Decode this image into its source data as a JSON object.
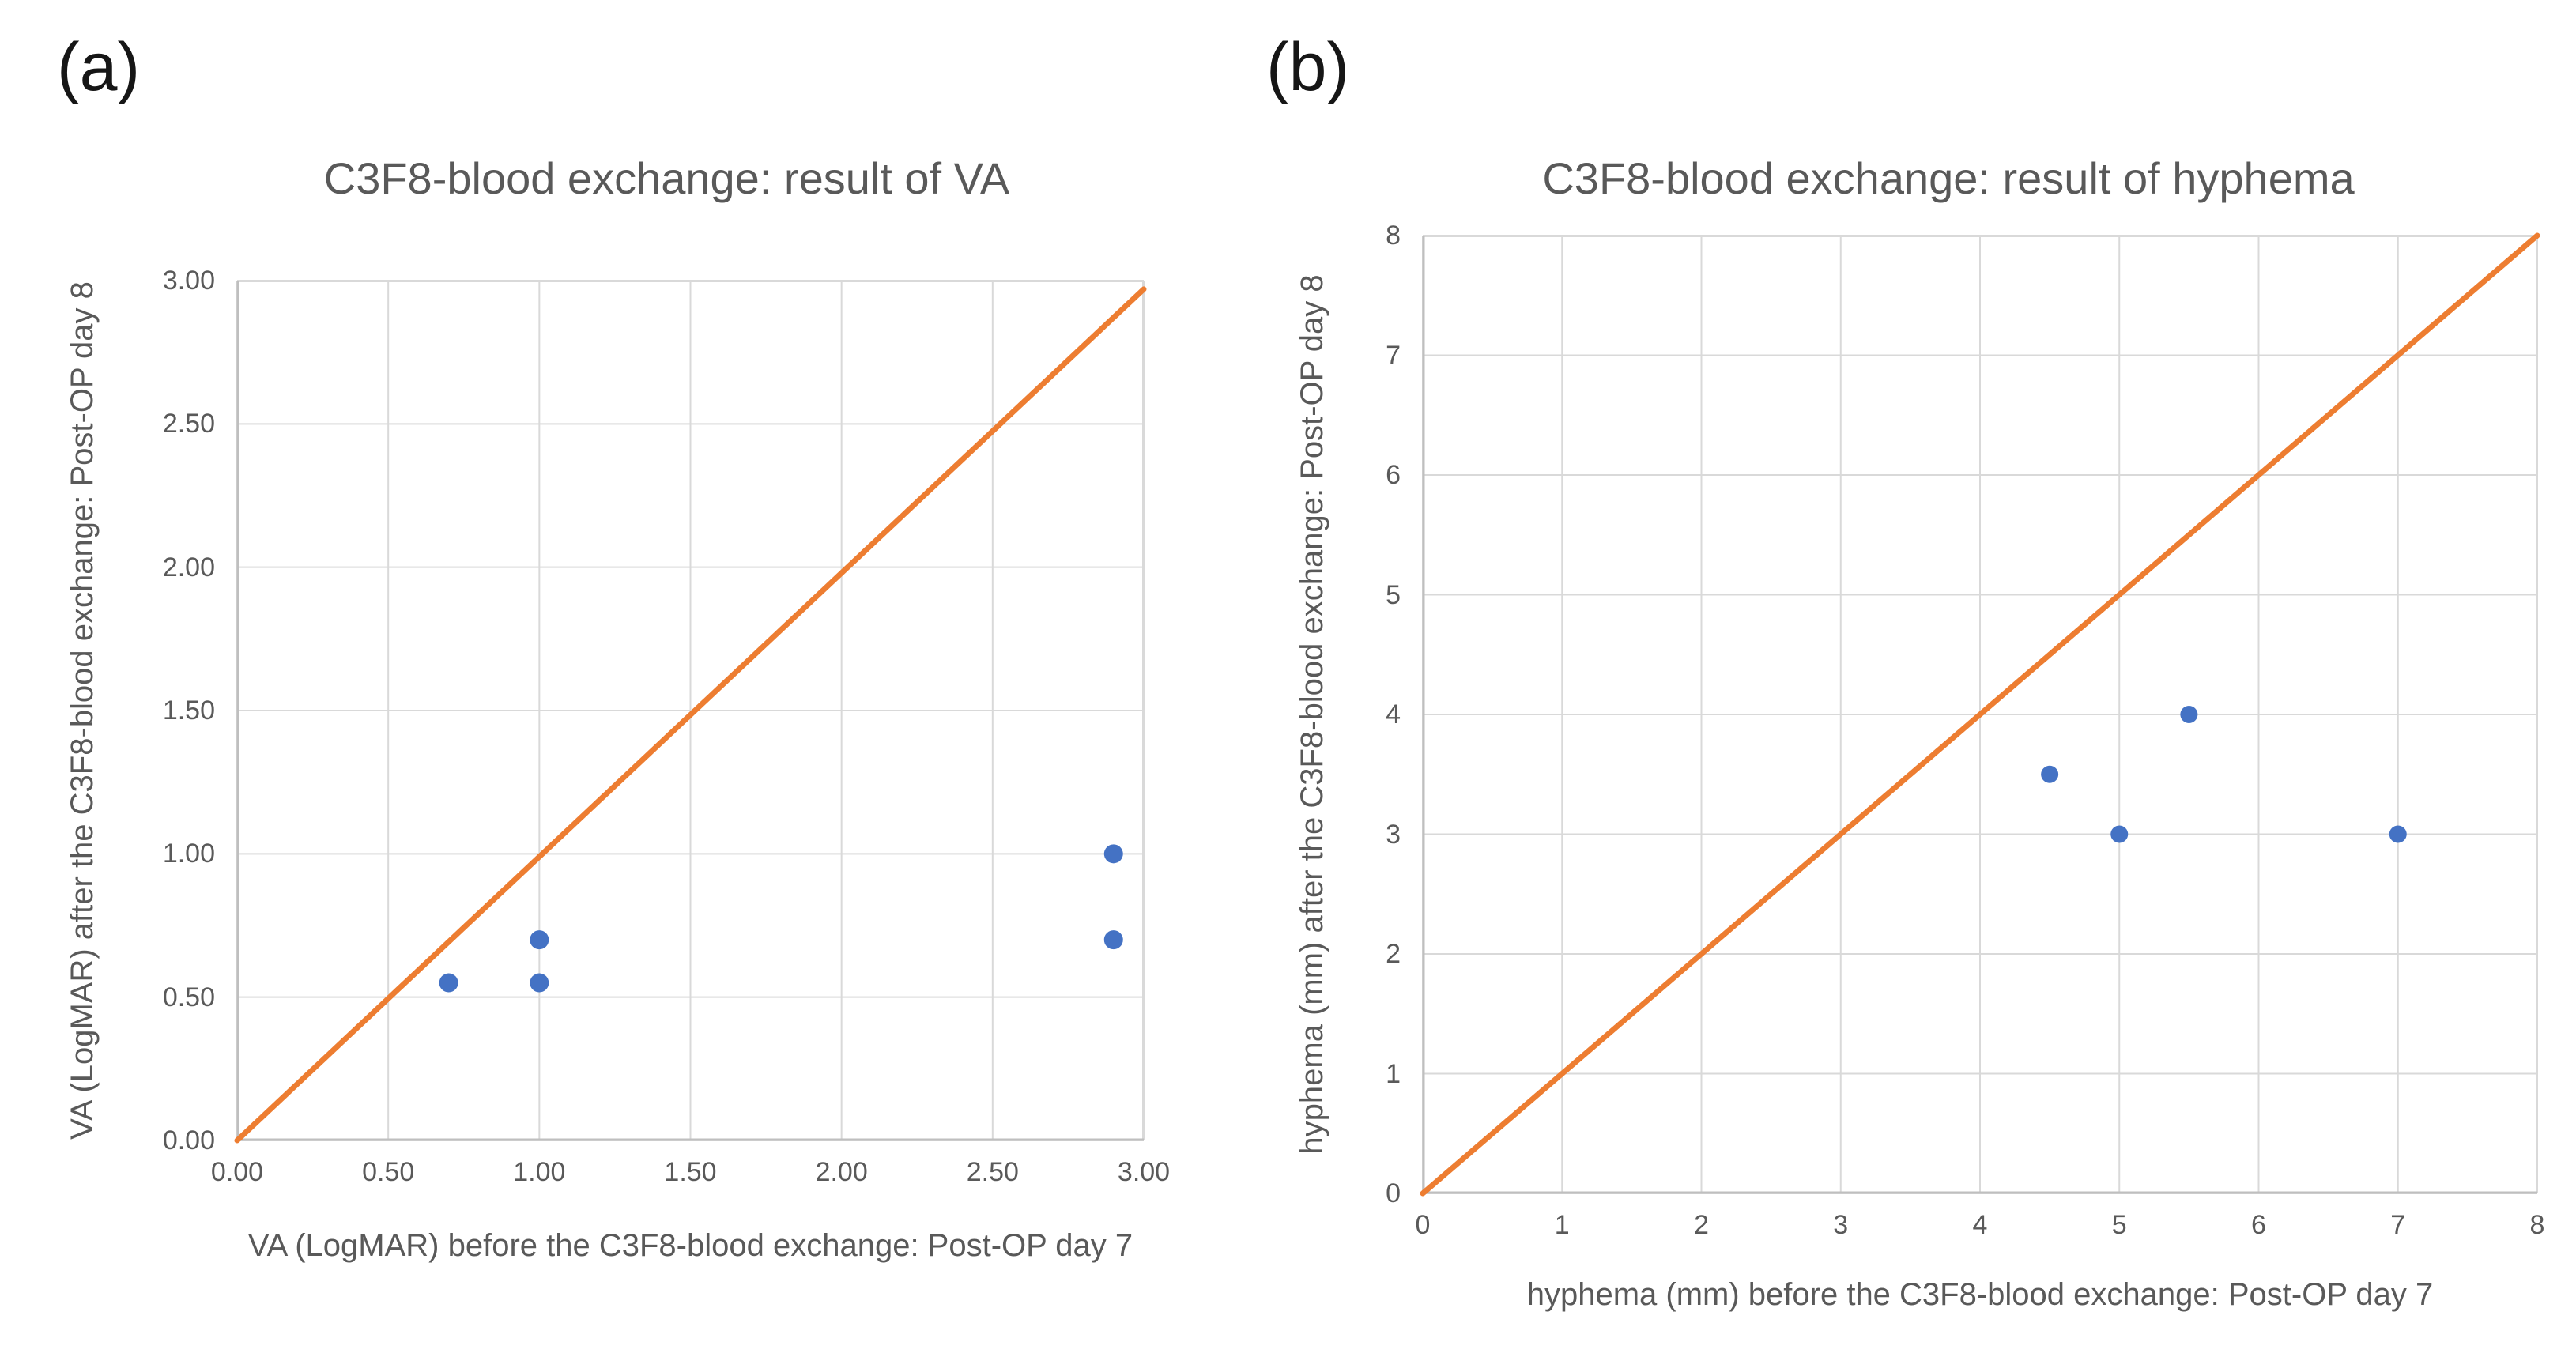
{
  "figure": {
    "panel_labels": [
      "(a)",
      "(b)"
    ]
  },
  "colors": {
    "marker": "#4472C4",
    "identity_line": "#ED7D31",
    "grid": "#D9D9D9",
    "axis": "#BFBFBF",
    "text": "#595959"
  },
  "chart_data": [
    {
      "type": "scatter",
      "panel": "a",
      "title": "C3F8-blood exchange: result of VA",
      "xlabel": "VA (LogMAR) before the C3F8-blood exchange: Post-OP day 7",
      "ylabel": "VA (LogMAR) after the C3F8-blood exchange: Post-OP day 8",
      "xlim": [
        0,
        3
      ],
      "ylim": [
        0,
        3
      ],
      "xtick_values": [
        0,
        0.5,
        1,
        1.5,
        2,
        2.5,
        3
      ],
      "ytick_values": [
        0,
        0.5,
        1,
        1.5,
        2,
        2.5,
        3
      ],
      "xtick_labels": [
        "0.00",
        "0.50",
        "1.00",
        "1.50",
        "2.00",
        "2.50",
        "3.00"
      ],
      "ytick_labels": [
        "0.00",
        "0.50",
        "1.00",
        "1.50",
        "2.00",
        "2.50",
        "3.00"
      ],
      "grid": true,
      "legend": "none",
      "points": [
        [
          0.7,
          0.55
        ],
        [
          1.0,
          0.7
        ],
        [
          1.0,
          0.55
        ],
        [
          2.9,
          1.0
        ],
        [
          2.9,
          0.7
        ]
      ],
      "identity_line": {
        "from": [
          0,
          0
        ],
        "to": [
          3,
          2.97
        ]
      }
    },
    {
      "type": "scatter",
      "panel": "b",
      "title": "C3F8-blood exchange: result of hyphema",
      "xlabel": "hyphema (mm) before the C3F8-blood exchange: Post-OP day 7",
      "ylabel": "hyphema (mm) after the C3F8-blood exchange: Post-OP day 8",
      "xlim": [
        0,
        8
      ],
      "ylim": [
        0,
        8
      ],
      "xtick_values": [
        0,
        1,
        2,
        3,
        4,
        5,
        6,
        7,
        8
      ],
      "ytick_values": [
        0,
        1,
        2,
        3,
        4,
        5,
        6,
        7,
        8
      ],
      "xtick_labels": [
        "0",
        "1",
        "2",
        "3",
        "4",
        "5",
        "6",
        "7",
        "8"
      ],
      "ytick_labels": [
        "0",
        "1",
        "2",
        "3",
        "4",
        "5",
        "6",
        "7",
        "8"
      ],
      "grid": true,
      "legend": "none",
      "points": [
        [
          4.5,
          3.5
        ],
        [
          5,
          3
        ],
        [
          5.5,
          4
        ],
        [
          7,
          3
        ]
      ],
      "identity_line": {
        "from": [
          0,
          0
        ],
        "to": [
          8,
          8
        ]
      }
    }
  ]
}
